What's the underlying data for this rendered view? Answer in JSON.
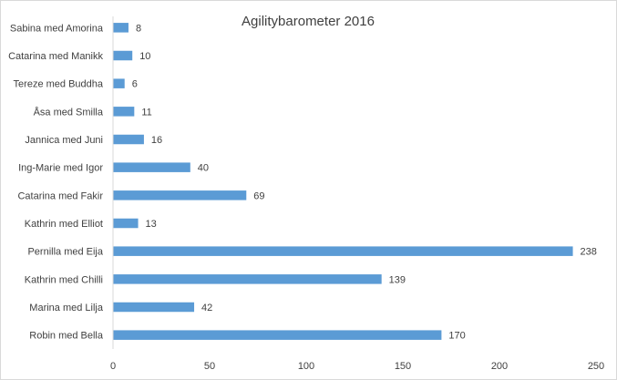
{
  "chart_data": {
    "type": "bar",
    "orientation": "horizontal",
    "title": "Agilitybarometer 2016",
    "categories": [
      "Sabina med Amorina",
      "Catarina med Manikk",
      "Tereze med Buddha",
      "Åsa med Smilla",
      "Jannica med Juni",
      "Ing-Marie med Igor",
      "Catarina med Fakir",
      "Kathrin med Elliot",
      "Pernilla med Eija",
      "Kathrin med Chilli",
      "Marina med Lilja",
      "Robin med Bella"
    ],
    "values": [
      8,
      10,
      6,
      11,
      16,
      40,
      69,
      13,
      238,
      139,
      42,
      170
    ],
    "xlim": [
      0,
      250
    ],
    "xticks": [
      "0",
      "50",
      "100",
      "150",
      "200",
      "250"
    ],
    "grid": false,
    "legend": "none",
    "bar_color": "#5b9bd5",
    "data_labels": true
  }
}
